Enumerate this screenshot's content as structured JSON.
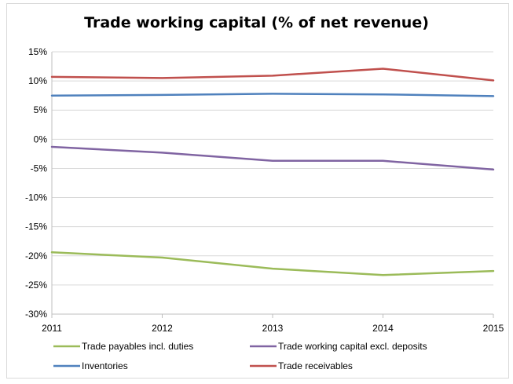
{
  "chart_data": {
    "type": "line",
    "title": "Trade working capital (% of net revenue)",
    "xlabel": "",
    "ylabel": "",
    "categories": [
      "2011",
      "2012",
      "2013",
      "2014",
      "2015"
    ],
    "y_ticks": [
      "15%",
      "10%",
      "5%",
      "0%",
      "-5%",
      "-10%",
      "-15%",
      "-20%",
      "-25%",
      "-30%"
    ],
    "ylim": [
      -30,
      15
    ],
    "y_step": 5,
    "grid": true,
    "legend_position": "bottom",
    "series": [
      {
        "name": "Trade payables incl. duties",
        "color": "#9bbb59",
        "values": [
          -19.4,
          -20.3,
          -22.2,
          -23.3,
          -22.6
        ]
      },
      {
        "name": "Trade working capital excl. deposits",
        "color": "#8064a2",
        "values": [
          -1.3,
          -2.3,
          -3.7,
          -3.7,
          -5.2
        ]
      },
      {
        "name": "Inventories",
        "color": "#4f81bd",
        "values": [
          7.5,
          7.6,
          7.8,
          7.7,
          7.4
        ]
      },
      {
        "name": "Trade receivables",
        "color": "#c0504d",
        "values": [
          10.7,
          10.5,
          10.9,
          12.1,
          10.1
        ]
      }
    ]
  }
}
